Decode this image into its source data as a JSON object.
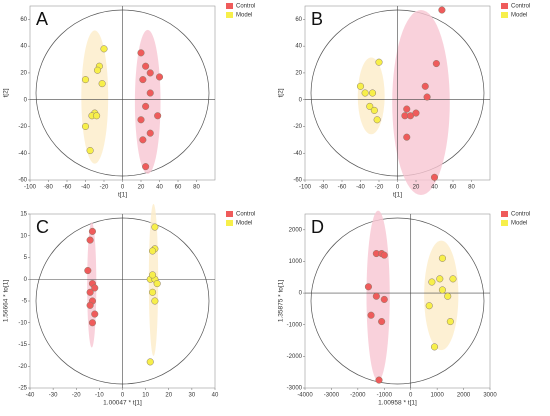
{
  "chart_data": [
    {
      "type": "scatter",
      "title": "A",
      "xlabel": "t[1]",
      "ylabel": "t[2]",
      "xlim": [
        -100,
        100
      ],
      "ylim": [
        -60,
        70
      ],
      "xticks": [
        -100,
        -80,
        -60,
        -40,
        -20,
        0,
        20,
        40,
        60,
        80
      ],
      "yticks": [
        -60,
        -40,
        -20,
        0,
        20,
        40,
        60
      ],
      "series": [
        {
          "name": "Control",
          "color": "#ef5b5b",
          "x": [
            20,
            25,
            30,
            40,
            22,
            30,
            25,
            38,
            20,
            30,
            22,
            25
          ],
          "y": [
            35,
            25,
            20,
            17,
            15,
            5,
            -5,
            -12,
            -15,
            -25,
            -30,
            -50
          ]
        },
        {
          "name": "Model",
          "color": "#f7ef4a",
          "x": [
            -20,
            -25,
            -27,
            -40,
            -22,
            -30,
            -33,
            -28,
            -40,
            -35
          ],
          "y": [
            38,
            25,
            22,
            15,
            12,
            -10,
            -12,
            -12,
            -20,
            -38
          ]
        }
      ]
    },
    {
      "type": "scatter",
      "title": "B",
      "xlabel": "t[1]",
      "ylabel": "t[2]",
      "xlim": [
        -100,
        100
      ],
      "ylim": [
        -60,
        70
      ],
      "xticks": [
        -100,
        -80,
        -60,
        -40,
        -20,
        0,
        20,
        40,
        60,
        80
      ],
      "yticks": [
        -60,
        -40,
        -20,
        0,
        20,
        40,
        60
      ],
      "series": [
        {
          "name": "Control",
          "color": "#ef5b5b",
          "x": [
            48,
            42,
            30,
            32,
            10,
            8,
            14,
            20,
            10,
            40
          ],
          "y": [
            67,
            27,
            10,
            2,
            -7,
            -12,
            -12,
            -10,
            -28,
            -58
          ]
        },
        {
          "name": "Model",
          "color": "#f7ef4a",
          "x": [
            -20,
            -40,
            -35,
            -27,
            -30,
            -25,
            -22
          ],
          "y": [
            28,
            10,
            5,
            5,
            -5,
            -8,
            -15
          ]
        }
      ]
    },
    {
      "type": "scatter",
      "title": "C",
      "xlabel": "1.00047 * t[1]",
      "ylabel": "1.56664 * to[1]",
      "xlim": [
        -40,
        40
      ],
      "ylim": [
        -25,
        15
      ],
      "xticks": [
        -40,
        -30,
        -20,
        -10,
        0,
        10,
        20,
        30,
        40
      ],
      "yticks": [
        -25,
        -20,
        -15,
        -10,
        -5,
        0,
        5,
        10,
        15
      ],
      "series": [
        {
          "name": "Control",
          "color": "#ef5b5b",
          "x": [
            -13,
            -14,
            -15,
            -13,
            -12,
            -14,
            -13,
            -14,
            -12,
            -13
          ],
          "y": [
            11,
            9,
            2,
            -1,
            -2,
            -3,
            -5,
            -6,
            -8,
            -10
          ]
        },
        {
          "name": "Model",
          "color": "#f7ef4a",
          "x": [
            14,
            14,
            13,
            12,
            14,
            13,
            15,
            13,
            14,
            12
          ],
          "y": [
            12,
            7,
            6.5,
            0,
            0,
            1,
            -1,
            -3,
            -5,
            -19
          ]
        }
      ]
    },
    {
      "type": "scatter",
      "title": "D",
      "xlabel": "1.00958 * t[1]",
      "ylabel": "1.35875 * to[1]",
      "xlim": [
        -4000,
        3000
      ],
      "ylim": [
        -3000,
        2500
      ],
      "xticks": [
        -4000,
        -3000,
        -2000,
        -1000,
        0,
        1000,
        2000,
        3000
      ],
      "yticks": [
        -3000,
        -2000,
        -1000,
        0,
        1000,
        2000
      ],
      "series": [
        {
          "name": "Control",
          "color": "#ef5b5b",
          "x": [
            -1300,
            -1100,
            -1000,
            -1600,
            -1300,
            -1000,
            -1500,
            -1100,
            -1200
          ],
          "y": [
            1250,
            1250,
            1200,
            200,
            -100,
            -200,
            -700,
            -900,
            -2750
          ]
        },
        {
          "name": "Model",
          "color": "#f7ef4a",
          "x": [
            1200,
            1100,
            1600,
            800,
            1200,
            1400,
            700,
            1500,
            900
          ],
          "y": [
            1100,
            450,
            450,
            350,
            100,
            -100,
            -400,
            -900,
            -1700
          ]
        }
      ]
    }
  ]
}
